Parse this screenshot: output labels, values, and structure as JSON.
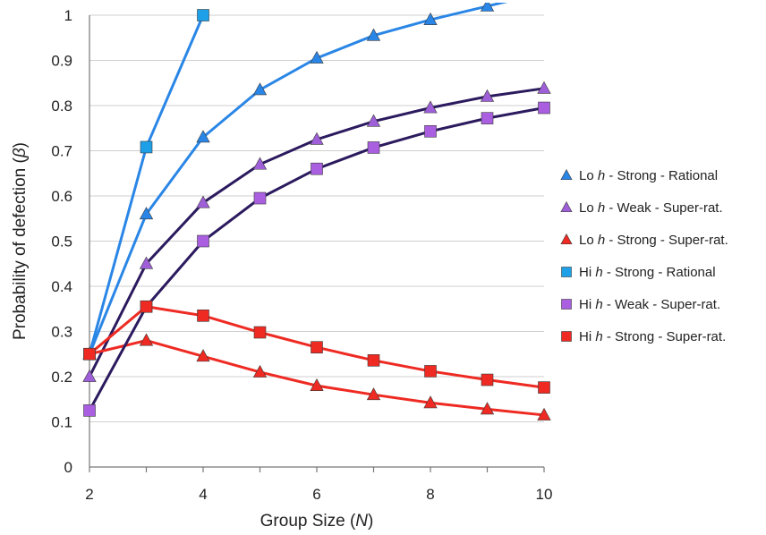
{
  "chart_data": {
    "type": "line",
    "title": "",
    "xlabel_parts": [
      "Group Size (",
      "N",
      ")"
    ],
    "ylabel_parts": [
      "Probability of defection (",
      "β",
      ")"
    ],
    "xlim": [
      2,
      10
    ],
    "ylim": [
      0,
      1
    ],
    "xticks": [
      2,
      4,
      6,
      8,
      10
    ],
    "yticks": [
      0,
      0.1,
      0.2,
      0.3,
      0.4,
      0.5,
      0.6,
      0.7,
      0.8,
      0.9,
      1
    ],
    "ytick_labels": [
      "0",
      "0.1",
      "0.2",
      "0.3",
      "0.4",
      "0.5",
      "0.6",
      "0.7",
      "0.8",
      "0.9",
      "1"
    ],
    "grid": "horizontal",
    "legend_placement": "right",
    "series": [
      {
        "name_parts": [
          "Lo ",
          "h",
          " - Strong - Rational"
        ],
        "marker": "triangle",
        "color": "#2a86e6",
        "x": [
          2,
          3,
          4,
          5,
          6,
          7,
          8,
          9,
          10
        ],
        "y": [
          0.25,
          0.56,
          0.73,
          0.835,
          0.905,
          0.955,
          0.99,
          1.02,
          1.05
        ]
      },
      {
        "name_parts": [
          "Lo ",
          "h",
          " - Weak - Super-rat."
        ],
        "marker": "triangle",
        "color": "#9e5fd8",
        "line_color": "#2b1a5e",
        "x": [
          2,
          3,
          4,
          5,
          6,
          7,
          8,
          9,
          10
        ],
        "y": [
          0.2,
          0.45,
          0.585,
          0.67,
          0.725,
          0.765,
          0.795,
          0.82,
          0.838
        ]
      },
      {
        "name_parts": [
          "Lo ",
          "h",
          " - Strong - Super-rat."
        ],
        "marker": "triangle",
        "color": "#ee2a22",
        "x": [
          2,
          3,
          4,
          5,
          6,
          7,
          8,
          9,
          10
        ],
        "y": [
          0.25,
          0.28,
          0.245,
          0.21,
          0.18,
          0.16,
          0.142,
          0.128,
          0.115
        ]
      },
      {
        "name_parts": [
          "Hi ",
          "h",
          " - Strong - Rational"
        ],
        "marker": "square",
        "color": "#1da0e8",
        "line_color": "#2a86e6",
        "x": [
          2,
          3,
          4
        ],
        "y": [
          0.25,
          0.708,
          1.0
        ]
      },
      {
        "name_parts": [
          "Hi ",
          "h",
          " - Weak - Super-rat."
        ],
        "marker": "square",
        "color": "#a95fe0",
        "line_color": "#2b1a5e",
        "x": [
          2,
          3,
          4,
          5,
          6,
          7,
          8,
          9,
          10
        ],
        "y": [
          0.125,
          0.355,
          0.5,
          0.595,
          0.66,
          0.707,
          0.743,
          0.772,
          0.795
        ]
      },
      {
        "name_parts": [
          "Hi ",
          "h",
          " - Strong - Super-rat."
        ],
        "marker": "square",
        "color": "#ee2a22",
        "x": [
          2,
          3,
          4,
          5,
          6,
          7,
          8,
          9,
          10
        ],
        "y": [
          0.25,
          0.355,
          0.335,
          0.298,
          0.265,
          0.236,
          0.212,
          0.193,
          0.176
        ]
      }
    ]
  }
}
